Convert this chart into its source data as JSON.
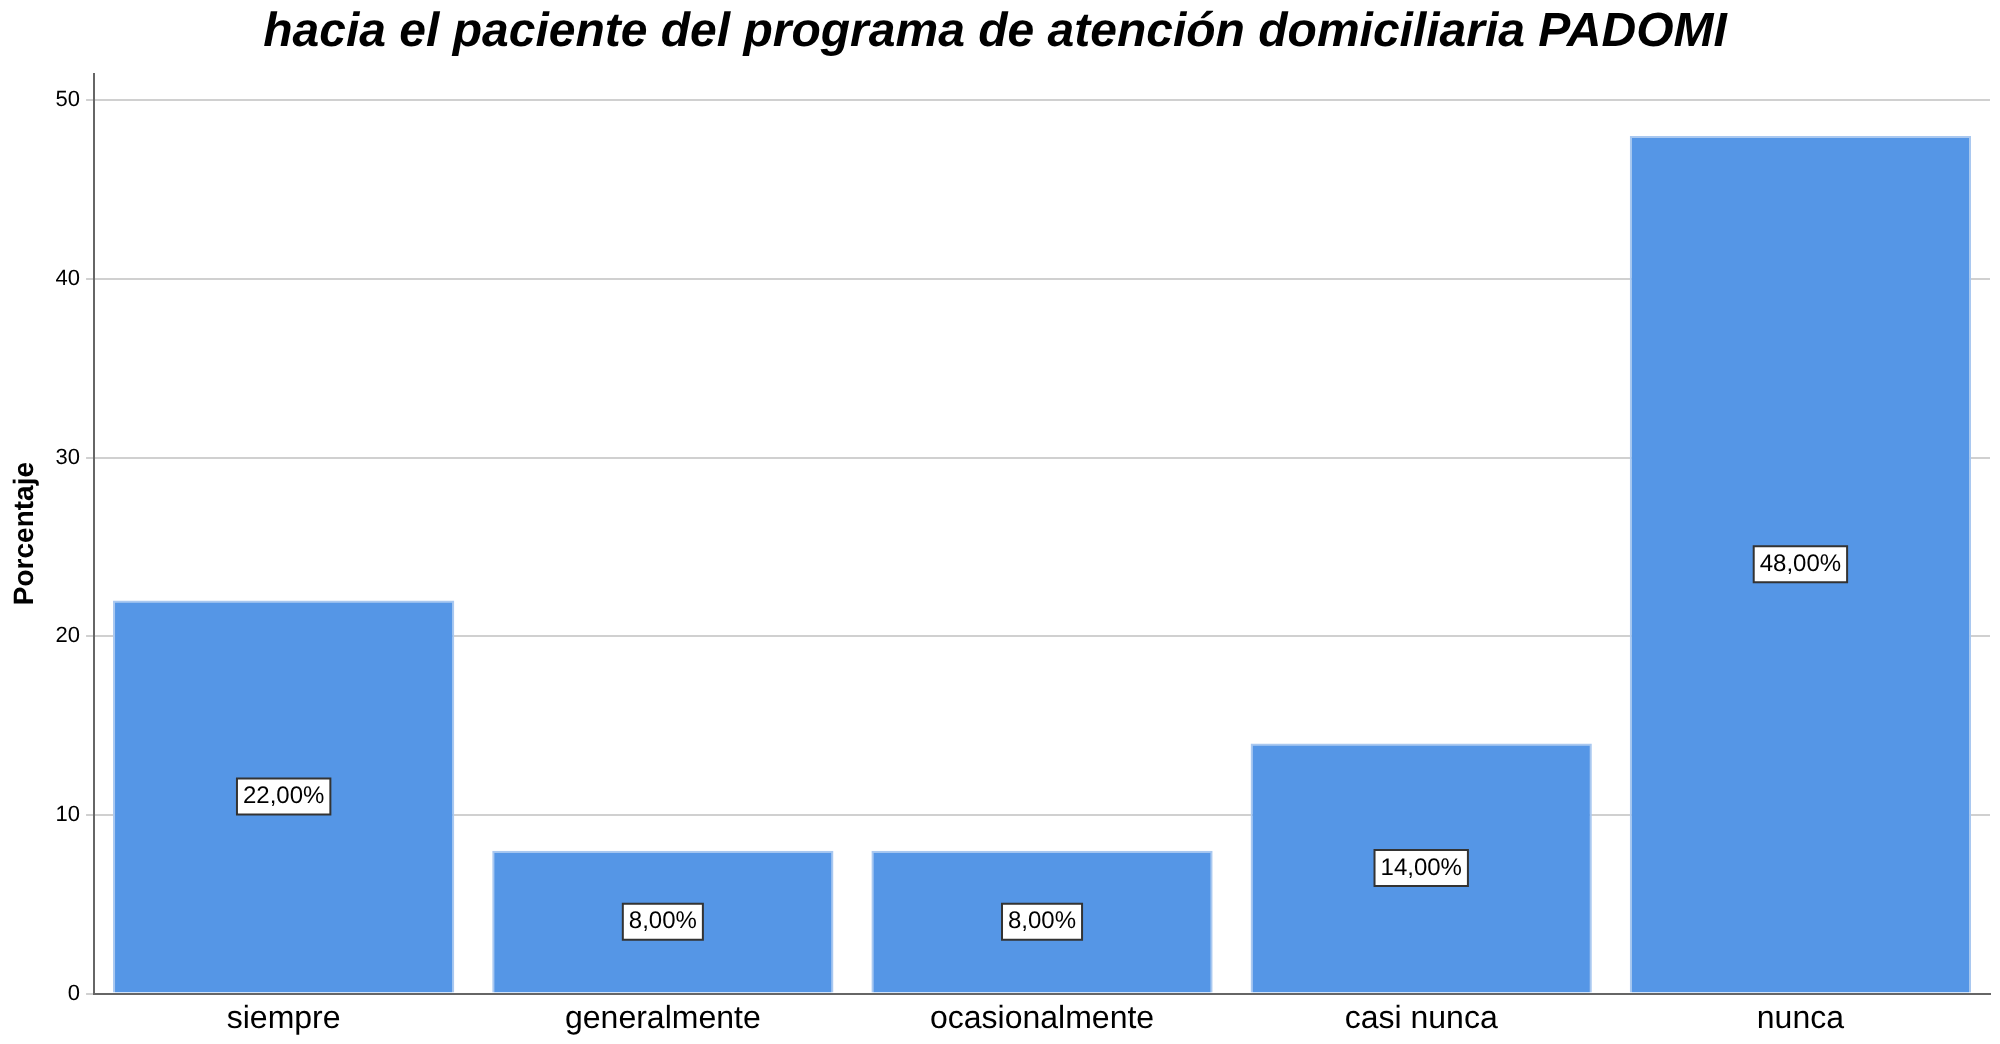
{
  "chart_data": {
    "type": "bar",
    "title": "hacia el paciente del programa de atención domiciliaria PADOMI",
    "ylabel": "Porcentaje",
    "categories": [
      "siempre",
      "generalmente",
      "ocasionalmente",
      "casi nunca",
      "nunca"
    ],
    "values": [
      22,
      8,
      8,
      14,
      48
    ],
    "color": "#5596e6",
    "value_labels": [
      "22,00%",
      "8,00%",
      "8,00%",
      "14,00%",
      "48,00%"
    ],
    "ylim": [
      0,
      51.5
    ],
    "yticks": [
      0,
      10,
      20,
      30,
      40,
      50
    ],
    "grid": "y",
    "legend": false
  }
}
